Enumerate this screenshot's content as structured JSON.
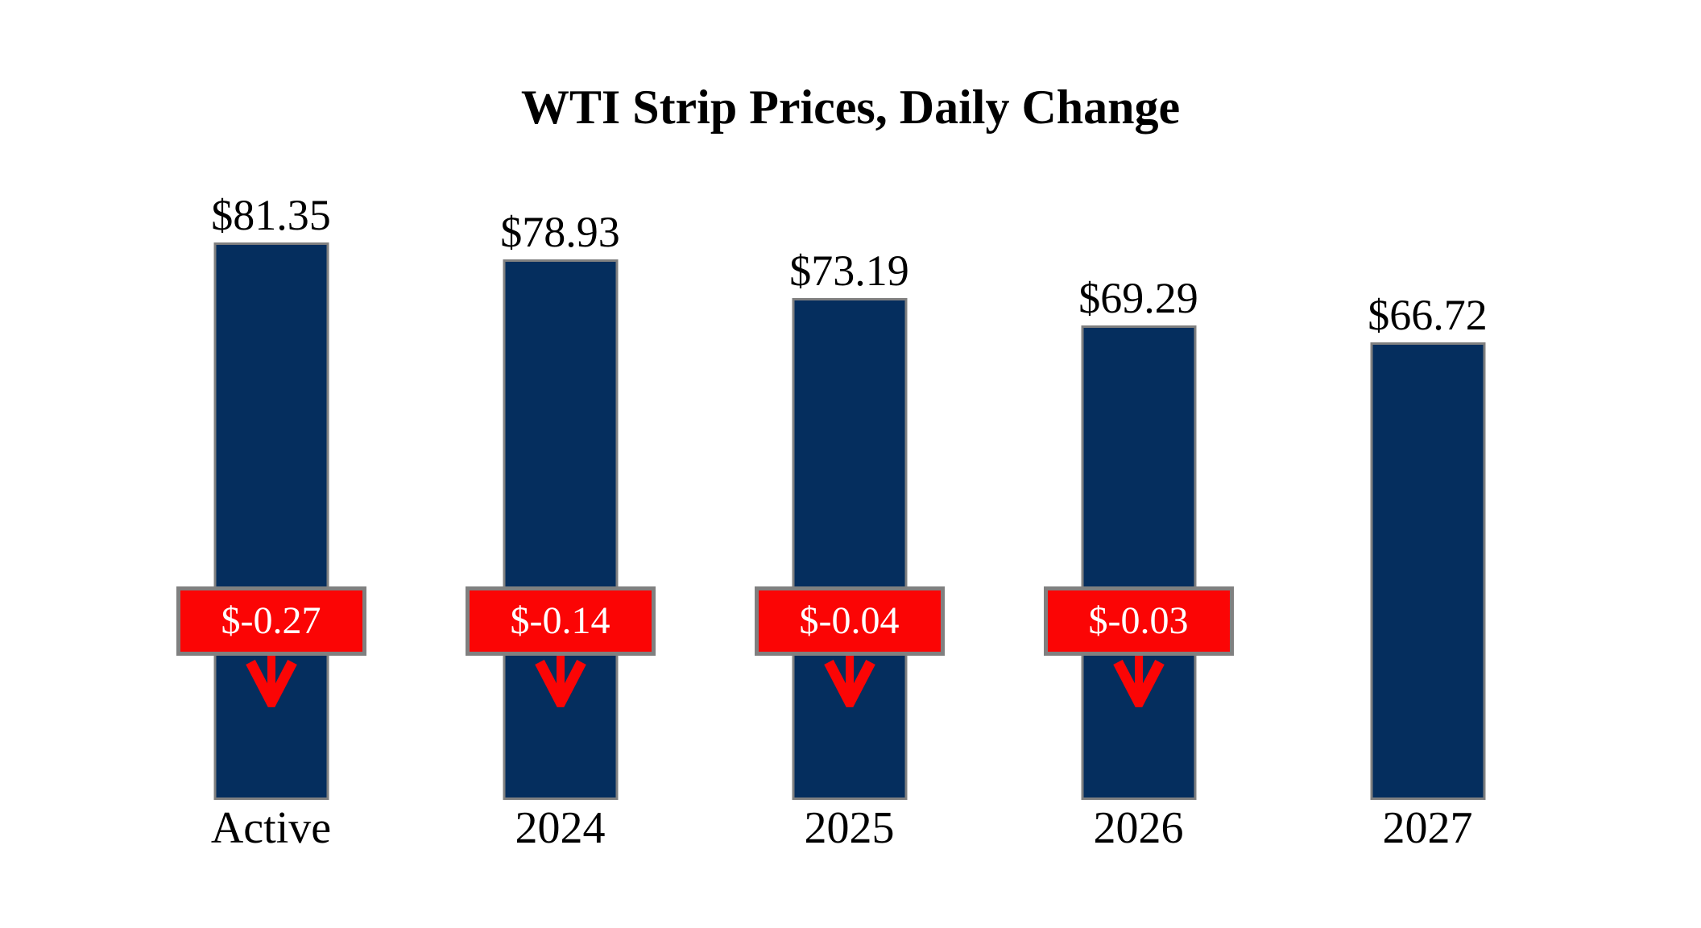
{
  "colors": {
    "background": "#ffffff",
    "bar": "#052e5e",
    "bar_border": "#808080",
    "badge_bg": "#fb0505",
    "badge_border": "#808080",
    "badge_text": "#ffffff",
    "arrow": "#fb0505",
    "text": "#000000"
  },
  "icons": {
    "down_arrow": "down-arrow-icon"
  },
  "chart_data": {
    "type": "bar",
    "title": "WTI Strip Prices, Daily Change",
    "categories": [
      "Active",
      "2024",
      "2025",
      "2026",
      "2027"
    ],
    "values": [
      81.35,
      78.93,
      73.19,
      69.29,
      66.72
    ],
    "value_labels": [
      "$81.35",
      "$78.93",
      "$73.19",
      "$69.29",
      "$66.72"
    ],
    "daily_changes": [
      -0.27,
      -0.14,
      -0.04,
      -0.03,
      null
    ],
    "change_labels": [
      "$-0.27",
      "$-0.14",
      "$-0.04",
      "$-0.03",
      null
    ],
    "xlabel": "",
    "ylabel": "",
    "ylim": [
      0,
      85
    ],
    "grid": false,
    "legend": false,
    "bar_color": "#052e5e",
    "change_badge_color": "#fb0505"
  }
}
